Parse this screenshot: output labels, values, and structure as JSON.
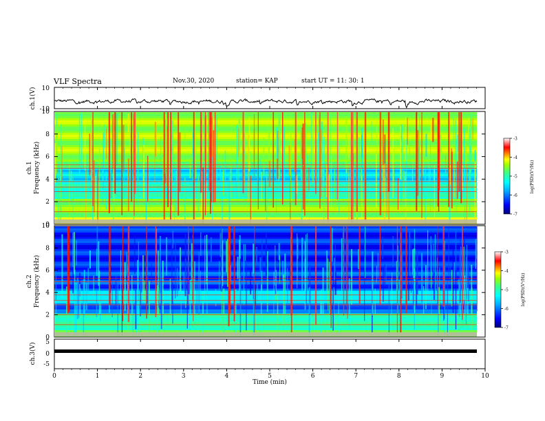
{
  "header": {
    "title": "VLF Spectra",
    "date": "Nov.30, 2020",
    "station": "station= KAP",
    "start_ut": "start  UT =   11: 30: 1"
  },
  "chart_data": [
    {
      "type": "line",
      "panel": "ch1-waveform",
      "ylabel": "ch.1(V)",
      "ylim": [
        -10,
        10
      ],
      "y_ticks": [
        "10",
        "-10"
      ],
      "x_range_min": [
        0,
        10
      ],
      "trace_color": "#000000",
      "description_values": "noisy waveform fluctuating roughly between -8 and +2 V"
    },
    {
      "type": "heatmap",
      "panel": "ch1-spectrogram",
      "ylabel": "ch.1\nFrequency (kHz)",
      "ylabel_line1": "ch.1",
      "ylabel_line2": "Frequency (kHz)",
      "ylim": [
        0,
        10
      ],
      "y_ticks": [
        "0",
        "2",
        "4",
        "6",
        "8",
        "10"
      ],
      "data_x_extent_min": [
        0,
        9.8
      ],
      "colorbar": {
        "label": "log(PSD)(V²/Hz)",
        "range": [
          -7,
          -3
        ],
        "ticks": [
          "-3",
          "-4",
          "-5",
          "-6",
          "-7"
        ]
      }
    },
    {
      "type": "heatmap",
      "panel": "ch2-spectrogram",
      "ylabel_line1": "ch.2",
      "ylabel_line2": "Frequency (kHz)",
      "ylim": [
        0,
        10
      ],
      "y_ticks": [
        "0",
        "2",
        "4",
        "6",
        "8",
        "10"
      ],
      "data_x_extent_min": [
        0,
        9.8
      ],
      "colorbar": {
        "label": "log(PSD)(V²/Hz)",
        "range": [
          -7,
          -3
        ],
        "ticks": [
          "-3",
          "-4",
          "-5",
          "-6",
          "-7"
        ]
      }
    },
    {
      "type": "line",
      "panel": "ch3-waveform",
      "ylabel": "ch.3(V)",
      "ylim": [
        -5,
        5
      ],
      "y_ticks": [
        "5",
        "0",
        "-5"
      ],
      "x_range_min": [
        0,
        10
      ],
      "xlabel": "Time (min)",
      "x_ticks": [
        "0",
        "1",
        "2",
        "3",
        "4",
        "5",
        "6",
        "7",
        "8",
        "9",
        "10"
      ],
      "trace_color": "#000000",
      "level_approx": -1.2
    }
  ],
  "colorbar_label": "log(PSD)(V²/Hz)",
  "colors": {
    "scale": [
      "#00007a",
      "#0000ff",
      "#00aaff",
      "#00ffff",
      "#40ff80",
      "#a0ff00",
      "#ffff00",
      "#ff8000",
      "#ff0000",
      "#ffffff"
    ]
  }
}
